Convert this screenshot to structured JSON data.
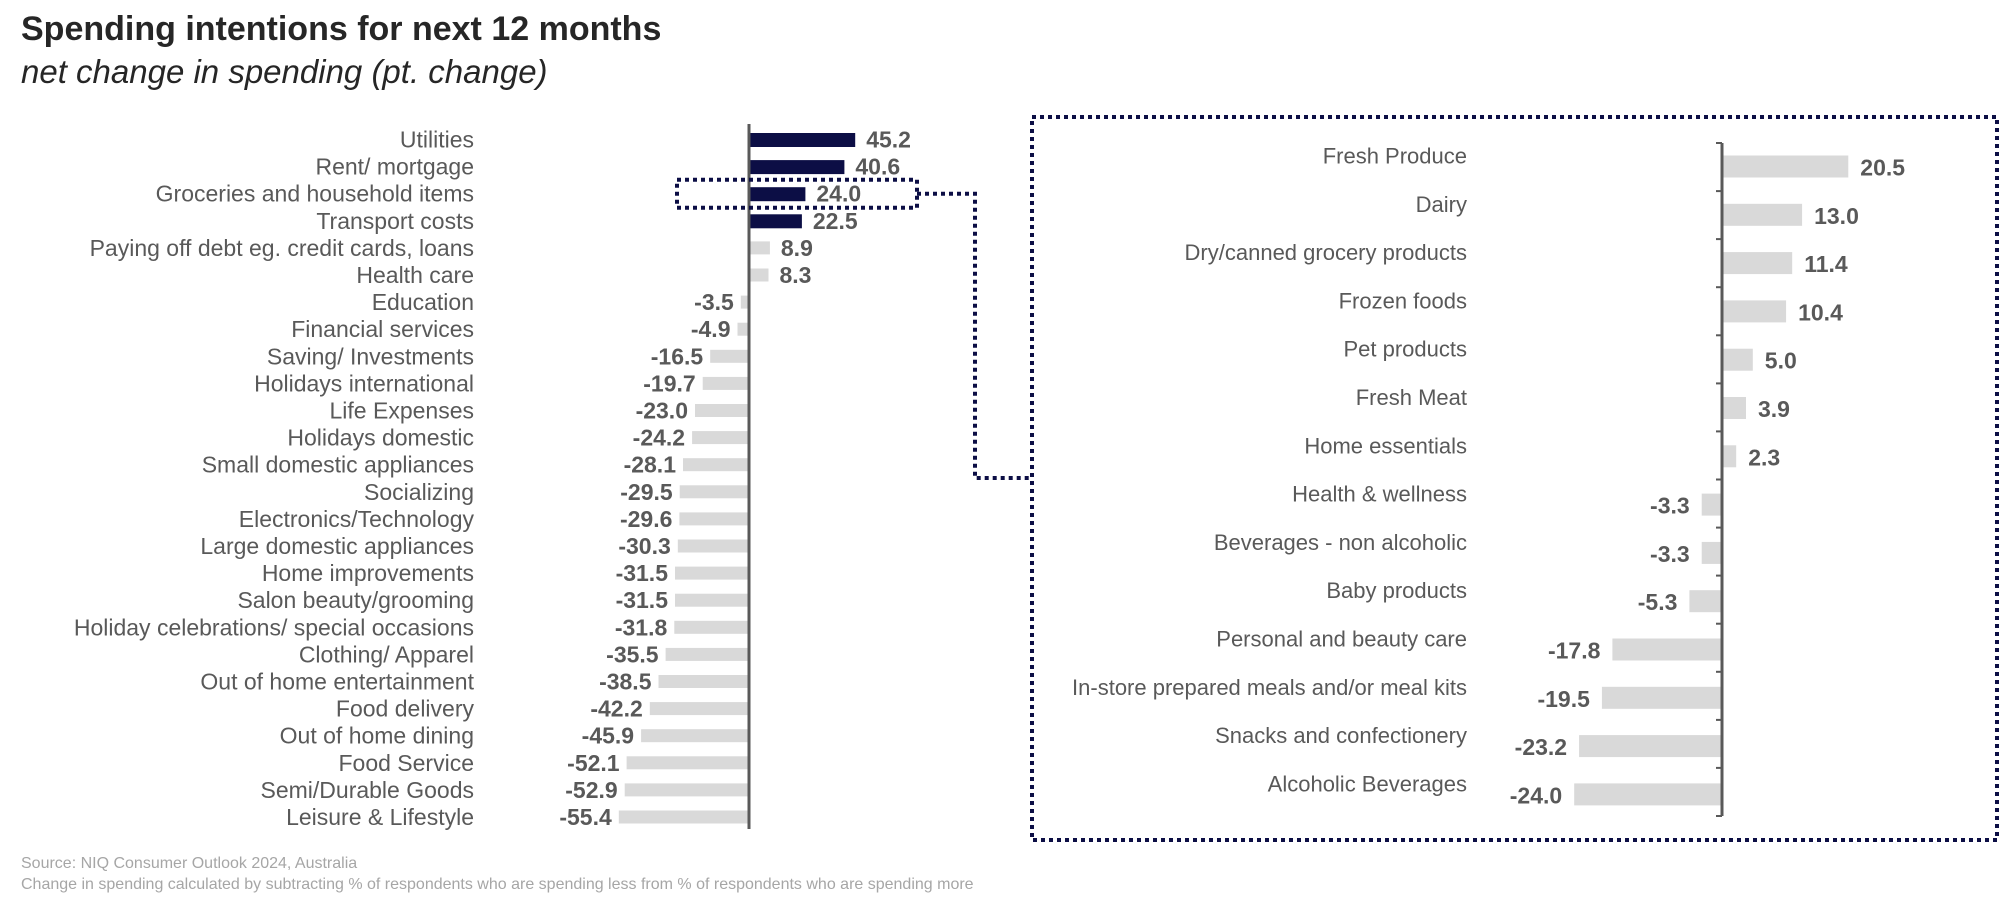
{
  "header": {
    "title": "Spending intentions for next 12 months",
    "subtitle": "net change in spending (pt. change)"
  },
  "footer": {
    "source": "Source: NIQ Consumer Outlook 2024, Australia",
    "note": "Change in spending calculated by subtracting % of respondents who are spending less from % of respondents who are spending more"
  },
  "colors": {
    "highlight": "#0c0e45",
    "neutral": "#d9d9d9",
    "axis": "#595959",
    "label": "#595959",
    "callout_border": "#0c0e45"
  },
  "chart_data": [
    {
      "type": "bar",
      "orientation": "horizontal",
      "title": "Spending intentions for next 12 months",
      "subtitle": "net change in spending (pt. change)",
      "xlim": [
        -55.4,
        45.2
      ],
      "grid": false,
      "legend": "none",
      "highlighted_categories": [
        "Utilities",
        "Rent/ mortgage",
        "Groceries and household items",
        "Transport costs"
      ],
      "categories": [
        "Utilities",
        "Rent/ mortgage",
        "Groceries and household items",
        "Transport costs",
        "Paying off debt eg. credit cards, loans",
        "Health care",
        "Education",
        "Financial services",
        "Saving/ Investments",
        "Holidays  international",
        "Life Expenses",
        "Holidays  domestic",
        "Small domestic appliances",
        "Socializing",
        "Electronics/Technology",
        "Large domestic appliances",
        "Home improvements",
        "Salon beauty/grooming",
        "Holiday celebrations/ special occasions",
        "Clothing/ Apparel",
        "Out of home entertainment",
        "Food delivery",
        "Out of home dining",
        "Food Service",
        "Semi/Durable Goods",
        "Leisure & Lifestyle"
      ],
      "values": [
        45.2,
        40.6,
        24.0,
        22.5,
        8.9,
        8.3,
        -3.5,
        -4.9,
        -16.5,
        -19.7,
        -23.0,
        -24.2,
        -28.1,
        -29.5,
        -29.6,
        -30.3,
        -31.5,
        -31.5,
        -31.8,
        -35.5,
        -38.5,
        -42.2,
        -45.9,
        -52.1,
        -52.9,
        -55.4
      ],
      "value_labels": [
        "45.2",
        "40.6",
        "24.0",
        "22.5",
        "8.9",
        "8.3",
        "-3.5",
        "-4.9",
        "-16.5",
        "-19.7",
        "-23.0",
        "-24.2",
        "-28.1",
        "-29.5",
        "-29.6",
        "-30.3",
        "-31.5",
        "-31.5",
        "-31.8",
        "-35.5",
        "-38.5",
        "-42.2",
        "-45.9",
        "-52.1",
        "-52.9",
        "-55.4"
      ]
    },
    {
      "type": "bar",
      "orientation": "horizontal",
      "callout_from": "Groceries and household items",
      "xlim": [
        -24.0,
        20.5
      ],
      "grid": false,
      "legend": "none",
      "categories": [
        "Fresh Produce",
        "Dairy",
        "Dry/canned grocery products",
        "Frozen foods",
        "Pet products",
        "Fresh Meat",
        "Home essentials",
        "Health & wellness",
        "Beverages - non alcoholic",
        "Baby products",
        "Personal and beauty care",
        "In-store prepared meals and/or meal kits",
        "Snacks and confectionery",
        "Alcoholic Beverages"
      ],
      "values": [
        20.5,
        13.0,
        11.4,
        10.4,
        5.0,
        3.9,
        2.3,
        -3.3,
        -3.3,
        -5.3,
        -17.8,
        -19.5,
        -23.2,
        -24.0
      ],
      "value_labels": [
        "20.5",
        "13.0",
        "11.4",
        "10.4",
        "5.0",
        "3.9",
        "2.3",
        "-3.3",
        "-3.3",
        "-5.3",
        "-17.8",
        "-19.5",
        "-23.2",
        "-24.0"
      ]
    }
  ]
}
